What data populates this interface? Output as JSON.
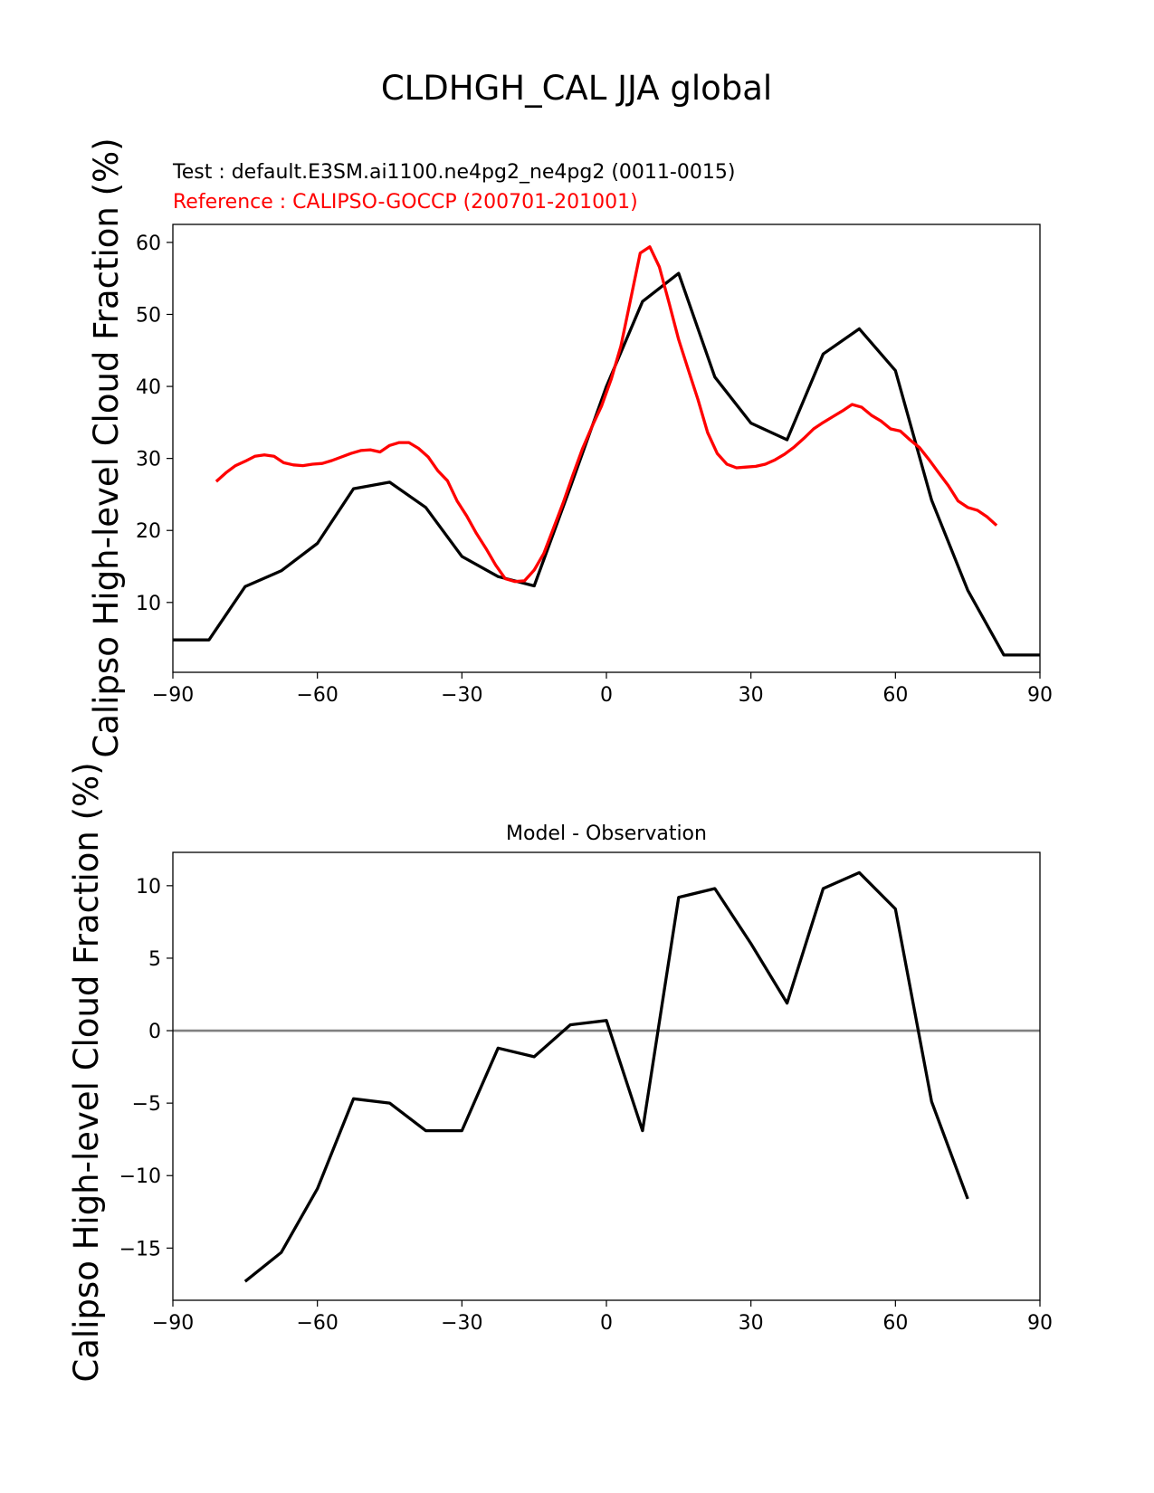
{
  "figure": {
    "title": "CLDHGH_CAL JJA global"
  },
  "chart_data": [
    {
      "type": "line",
      "test_label": "Test : default.E3SM.ai1100.ne4pg2_ne4pg2 (0011-0015)",
      "reference_label": "Reference : CALIPSO-GOCCP (200701-201001)",
      "ylabel": "Calipso High-level Cloud Fraction (%)",
      "xlim": [
        -90,
        90
      ],
      "ylim": [
        0.3,
        62.5
      ],
      "xticks": [
        -90,
        -60,
        -30,
        0,
        30,
        60,
        90
      ],
      "xtick_labels": [
        "−90",
        "−60",
        "−30",
        "0",
        "30",
        "60",
        "90"
      ],
      "yticks": [
        10,
        20,
        30,
        40,
        50,
        60
      ],
      "ytick_labels": [
        "10",
        "20",
        "30",
        "40",
        "50",
        "60"
      ],
      "series": [
        {
          "color": "#000000",
          "x": [
            -90,
            -82.5,
            -75,
            -67.5,
            -60,
            -52.5,
            -45,
            -37.5,
            -30,
            -22.5,
            -15,
            -7.5,
            0,
            7.5,
            15,
            22.5,
            30,
            37.5,
            45,
            52.5,
            60,
            67.5,
            75,
            82.5,
            90
          ],
          "y": [
            4.8,
            4.8,
            12.2,
            14.4,
            18.2,
            25.8,
            26.7,
            23.2,
            16.4,
            13.6,
            12.3,
            26,
            40,
            51.8,
            55.7,
            41.3,
            34.9,
            32.6,
            44.5,
            48,
            42.2,
            24.2,
            11.7,
            2.7,
            2.7
          ]
        },
        {
          "color": "#ff0000",
          "x": [
            -81,
            -79,
            -77,
            -75,
            -73,
            -71,
            -69,
            -67,
            -65,
            -63,
            -61,
            -59,
            -57,
            -55,
            -53,
            -51,
            -49,
            -47,
            -45,
            -43,
            -41,
            -39,
            -37,
            -35,
            -33,
            -31,
            -29,
            -27,
            -25,
            -23,
            -21,
            -19,
            -17,
            -15,
            -13,
            -11,
            -9,
            -7,
            -5,
            -3,
            -1,
            1,
            3,
            5,
            7,
            9,
            11,
            13,
            15,
            17,
            19,
            21,
            23,
            25,
            27,
            29,
            31,
            33,
            35,
            37,
            39,
            41,
            43,
            45,
            47,
            49,
            51,
            53,
            55,
            57,
            59,
            61,
            63,
            65,
            67,
            69,
            71,
            73,
            75,
            77,
            79,
            81
          ],
          "y": [
            26.8,
            28.0,
            29.0,
            29.6,
            30.3,
            30.5,
            30.3,
            29.4,
            29.1,
            29.0,
            29.2,
            29.3,
            29.7,
            30.2,
            30.7,
            31.1,
            31.2,
            30.9,
            31.8,
            32.2,
            32.2,
            31.4,
            30.2,
            28.3,
            26.9,
            24.1,
            22.0,
            19.6,
            17.5,
            15.2,
            13.3,
            12.9,
            13.0,
            14.5,
            16.8,
            20.3,
            23.8,
            27.6,
            31.3,
            34.4,
            37.3,
            41.0,
            45.6,
            52.0,
            58.5,
            59.4,
            56.6,
            51.6,
            46.5,
            42.3,
            38.2,
            33.6,
            30.7,
            29.2,
            28.7,
            28.8,
            28.9,
            29.2,
            29.8,
            30.6,
            31.6,
            32.8,
            34.1,
            35.0,
            35.8,
            36.6,
            37.5,
            37.1,
            36.0,
            35.2,
            34.1,
            33.8,
            32.6,
            31.5,
            29.8,
            28.0,
            26.2,
            24.1,
            23.2,
            22.8,
            21.9,
            20.7
          ]
        }
      ]
    },
    {
      "type": "line",
      "title": "Model - Observation",
      "ylabel": "Calipso High-level Cloud Fraction (%)",
      "xlim": [
        -90,
        90
      ],
      "ylim": [
        -18.6,
        12.3
      ],
      "xticks": [
        -90,
        -60,
        -30,
        0,
        30,
        60,
        90
      ],
      "xtick_labels": [
        "−90",
        "−60",
        "−30",
        "0",
        "30",
        "60",
        "90"
      ],
      "yticks": [
        -15,
        -10,
        -5,
        0,
        5,
        10
      ],
      "ytick_labels": [
        "−15",
        "−10",
        "−5",
        "0",
        "5",
        "10"
      ],
      "zero_line_color": "#808080",
      "series": [
        {
          "color": "#000000",
          "x": [
            -75,
            -67.5,
            -60,
            -52.5,
            -45,
            -37.5,
            -30,
            -22.5,
            -15,
            -7.5,
            0,
            7.5,
            15,
            22.5,
            30,
            37.5,
            45,
            52.5,
            60,
            67.5,
            75
          ],
          "y": [
            -17.3,
            -15.3,
            -10.9,
            -4.7,
            -5.0,
            -6.9,
            -6.9,
            -1.2,
            -1.8,
            0.4,
            0.7,
            -6.9,
            9.2,
            9.8,
            6.0,
            1.9,
            9.8,
            10.9,
            8.4,
            -4.9,
            -11.6
          ]
        }
      ]
    }
  ]
}
